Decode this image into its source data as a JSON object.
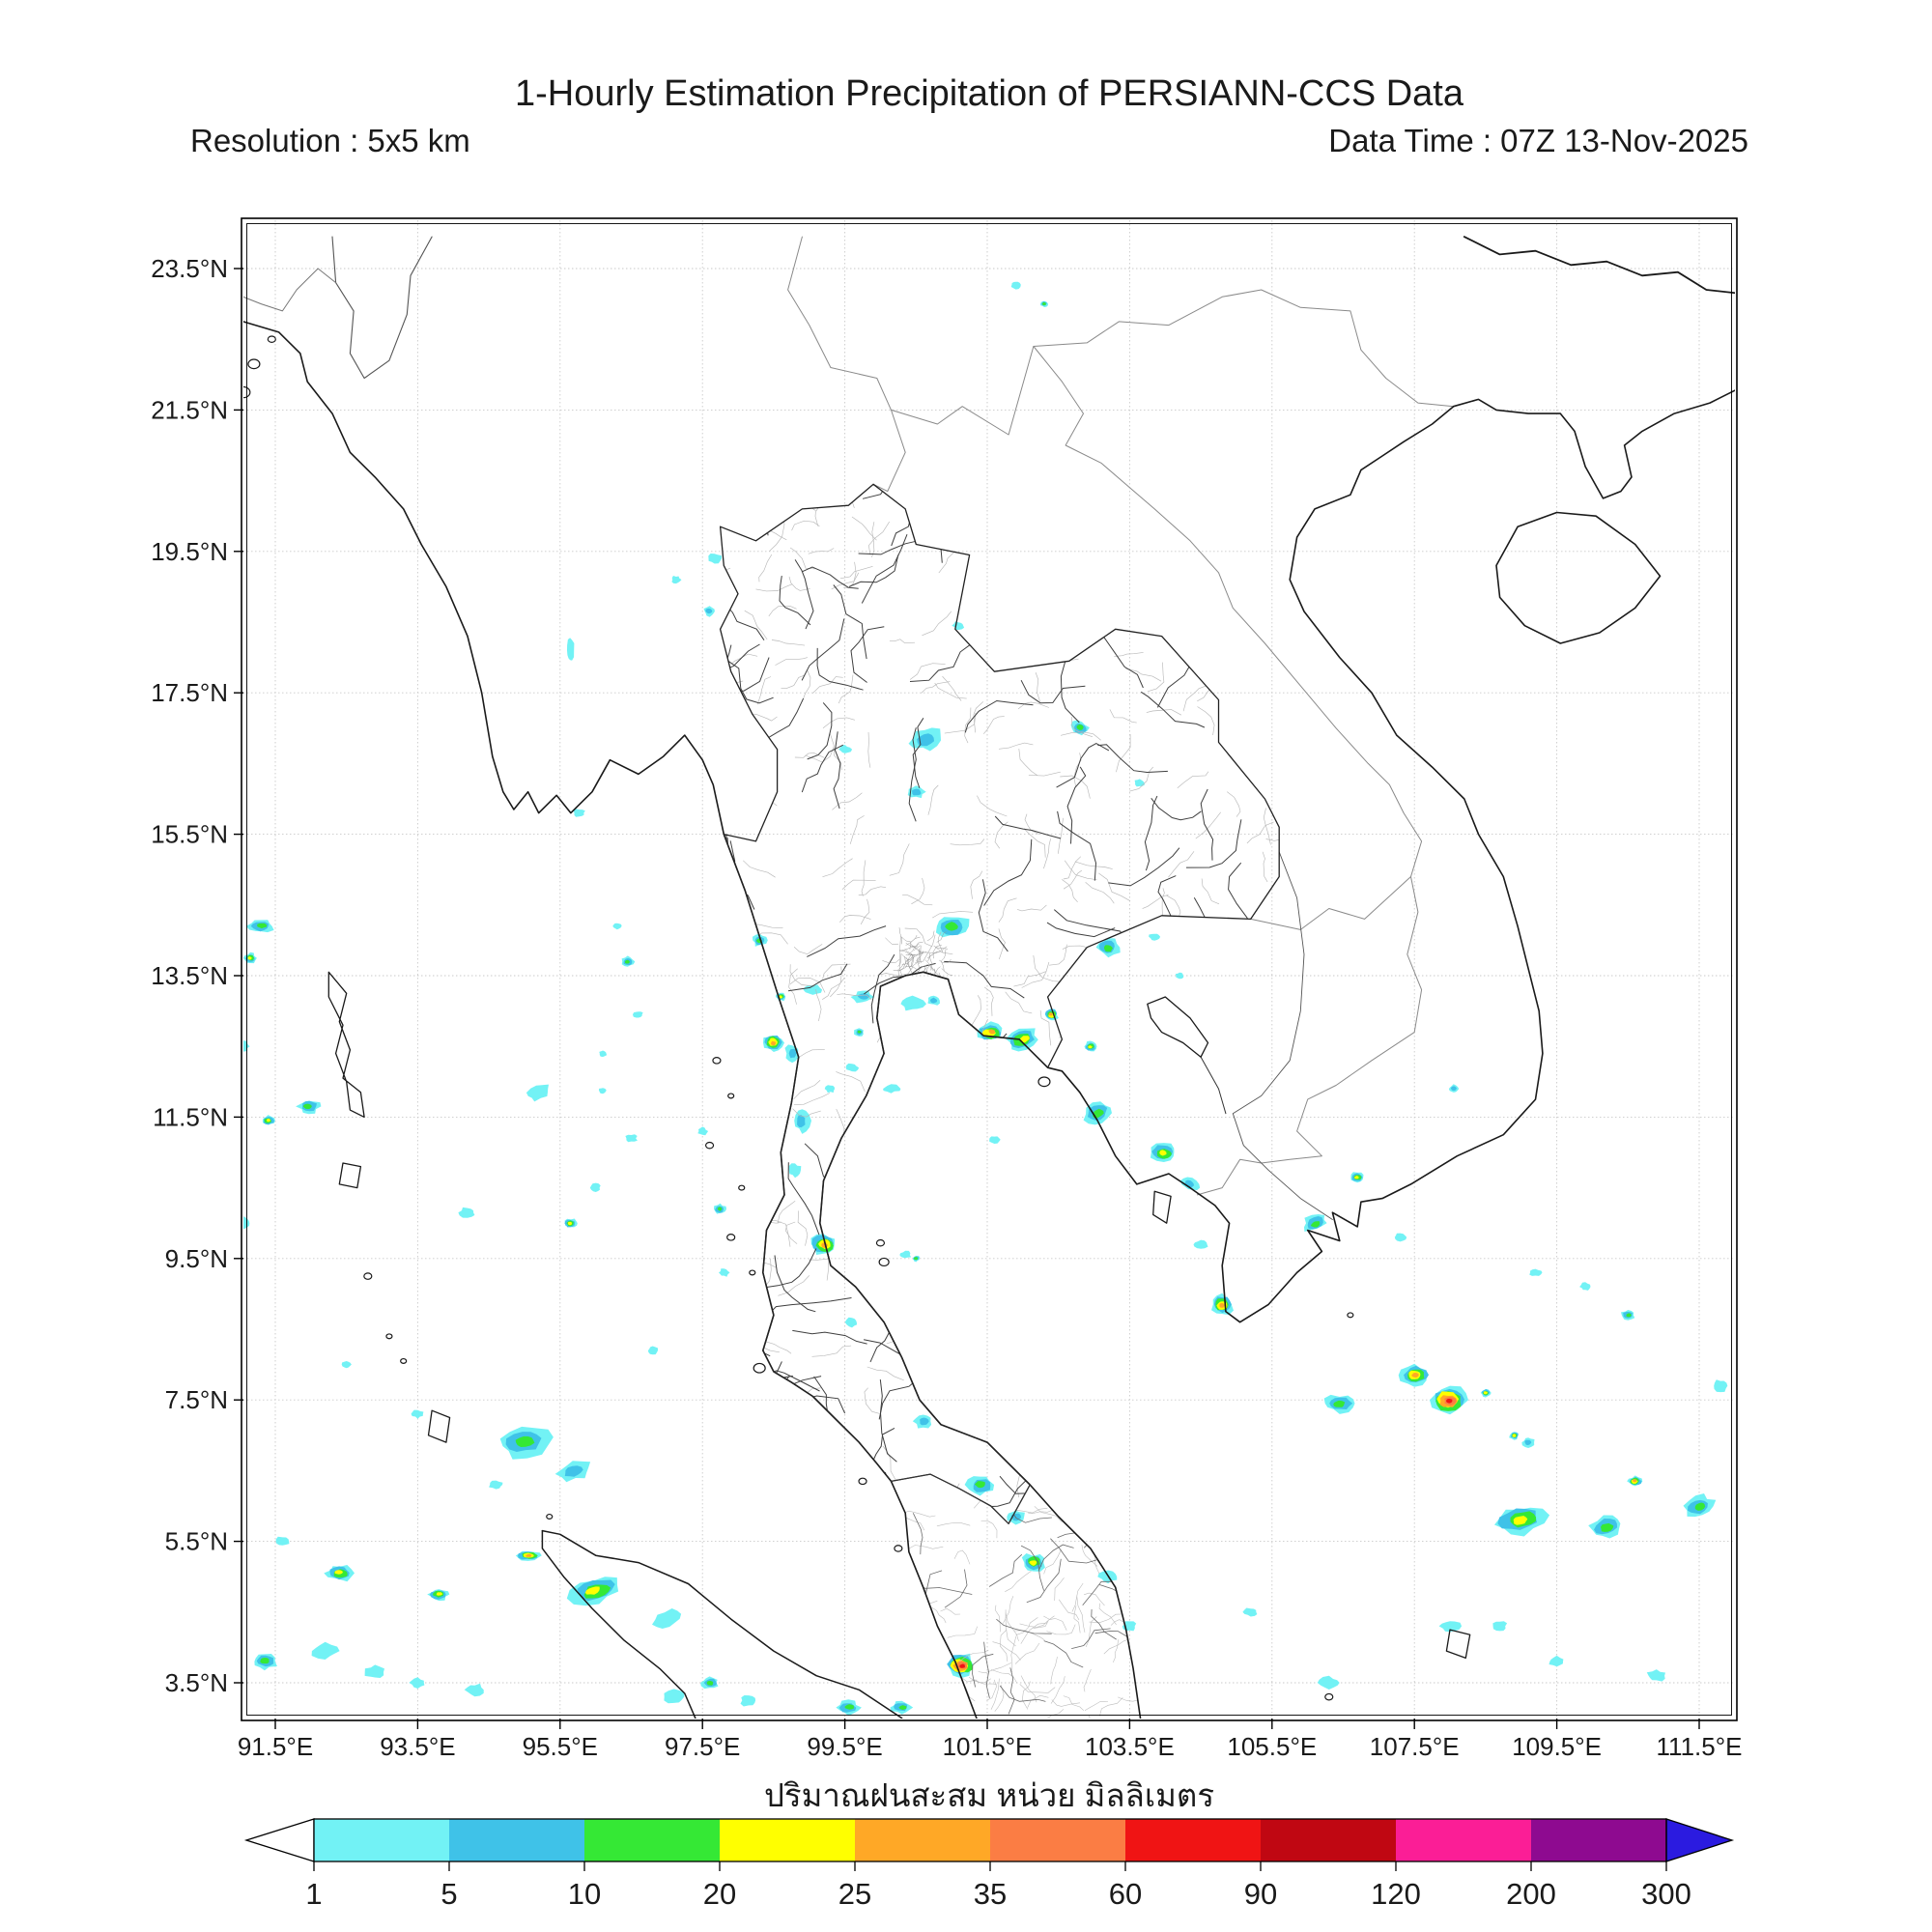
{
  "header": {
    "title": "1-Hourly Estimation Precipitation of PERSIANN-CCS Data",
    "resolution": "Resolution : 5x5 km",
    "data_time": "Data Time : 07Z 13-Nov-2025"
  },
  "caption_thai": "ปริมาณฝนสะสม หน่วย มิลลิเมตร",
  "map_axes": {
    "x_tick_labels": [
      "91.5°E",
      "93.5°E",
      "95.5°E",
      "97.5°E",
      "99.5°E",
      "101.5°E",
      "103.5°E",
      "105.5°E",
      "107.5°E",
      "109.5°E",
      "111.5°E"
    ],
    "x_tick_values": [
      91.5,
      93.5,
      95.5,
      97.5,
      99.5,
      101.5,
      103.5,
      105.5,
      107.5,
      109.5,
      111.5
    ],
    "y_tick_labels": [
      "23.5°N",
      "21.5°N",
      "19.5°N",
      "17.5°N",
      "15.5°N",
      "13.5°N",
      "11.5°N",
      "9.5°N",
      "7.5°N",
      "5.5°N",
      "3.5°N"
    ],
    "y_tick_values": [
      23.5,
      21.5,
      19.5,
      17.5,
      15.5,
      13.5,
      11.5,
      9.5,
      7.5,
      5.5,
      3.5
    ]
  },
  "colorbar": {
    "tick_labels": [
      "1",
      "5",
      "10",
      "20",
      "25",
      "35",
      "60",
      "90",
      "120",
      "200",
      "300"
    ],
    "tick_values": [
      1,
      5,
      10,
      20,
      25,
      35,
      60,
      90,
      120,
      200,
      300
    ],
    "segment_colors": [
      "#72F2F5",
      "#3FC2E8",
      "#35E835",
      "#FFFF00",
      "#FFA826",
      "#FB7D44",
      "#F01414",
      "#C00712",
      "#FB1E96",
      "#8E0A90"
    ],
    "under_arrow_color": "#FFFFFF",
    "over_arrow_color": "#2B1BE0",
    "border_color": "#000000"
  },
  "chart_data": {
    "type": "map-precipitation",
    "unit_label_thai": "มิลลิเมตร",
    "legend_values_mm": [
      1,
      5,
      10,
      20,
      25,
      35,
      60,
      90,
      120,
      200,
      300
    ],
    "level_colors": {
      "1": "#72F2F5",
      "2": "#3FC2E8",
      "3": "#35E835",
      "4": "#FFFF00",
      "5": "#FFA826",
      "6": "#FB7D44",
      "7": "#F01414",
      "8": "#C00712"
    },
    "blob_columns": [
      "lon",
      "lat",
      "intensity_level",
      "rx_px",
      "ry_px",
      "rot_deg"
    ],
    "blobs": [
      [
        97.67,
        19.4,
        1,
        7,
        5,
        0
      ],
      [
        97.13,
        19.1,
        1,
        5,
        4,
        0
      ],
      [
        97.6,
        18.65,
        2,
        6,
        5,
        0
      ],
      [
        101.1,
        18.45,
        1,
        6,
        4,
        0
      ],
      [
        100.65,
        16.85,
        2,
        16,
        11,
        -15
      ],
      [
        99.5,
        16.7,
        1,
        6,
        4,
        0
      ],
      [
        100.5,
        16.1,
        2,
        9,
        6,
        0
      ],
      [
        101.0,
        14.2,
        3,
        17,
        12,
        0
      ],
      [
        102.8,
        17.0,
        3,
        9,
        7,
        20
      ],
      [
        103.64,
        16.23,
        1,
        5,
        4,
        0
      ],
      [
        101.9,
        23.27,
        1,
        5,
        4,
        0
      ],
      [
        102.3,
        23.0,
        3,
        4,
        3,
        0
      ],
      [
        95.64,
        18.1,
        1,
        4,
        12,
        0
      ],
      [
        95.77,
        15.8,
        1,
        6,
        4,
        0
      ],
      [
        96.3,
        14.2,
        1,
        4,
        3,
        0
      ],
      [
        96.45,
        13.7,
        3,
        6,
        5,
        0
      ],
      [
        96.6,
        12.95,
        1,
        5,
        4,
        0
      ],
      [
        96.1,
        12.4,
        1,
        4,
        3,
        0
      ],
      [
        98.5,
        12.55,
        5,
        10,
        9,
        0
      ],
      [
        98.76,
        12.4,
        2,
        7,
        9,
        0
      ],
      [
        98.9,
        11.45,
        2,
        8,
        12,
        0
      ],
      [
        98.8,
        10.75,
        1,
        6,
        7,
        0
      ],
      [
        96.0,
        10.5,
        1,
        5,
        4,
        0
      ],
      [
        98.3,
        14.0,
        3,
        7,
        6,
        0
      ],
      [
        98.6,
        13.2,
        4,
        5,
        4,
        0
      ],
      [
        99.05,
        13.3,
        1,
        8,
        5,
        0
      ],
      [
        99.75,
        13.2,
        2,
        10,
        6,
        0
      ],
      [
        99.7,
        12.7,
        3,
        5,
        4,
        0
      ],
      [
        99.6,
        12.2,
        1,
        6,
        4,
        0
      ],
      [
        100.45,
        13.1,
        1,
        12,
        7,
        0
      ],
      [
        100.75,
        13.15,
        2,
        6,
        5,
        0
      ],
      [
        101.55,
        12.7,
        5,
        14,
        9,
        0
      ],
      [
        100.15,
        11.9,
        1,
        9,
        4,
        0
      ],
      [
        99.3,
        11.9,
        1,
        5,
        4,
        0
      ],
      [
        102.0,
        12.6,
        4,
        16,
        11,
        -20
      ],
      [
        102.4,
        12.95,
        5,
        7,
        6,
        0
      ],
      [
        102.95,
        12.5,
        4,
        6,
        5,
        0
      ],
      [
        103.05,
        11.55,
        3,
        15,
        11,
        -25
      ],
      [
        103.98,
        11.0,
        4,
        13,
        9,
        0
      ],
      [
        104.35,
        10.55,
        2,
        9,
        6,
        20
      ],
      [
        103.2,
        13.9,
        3,
        12,
        9,
        0
      ],
      [
        103.85,
        14.05,
        1,
        6,
        4,
        0
      ],
      [
        104.2,
        13.5,
        1,
        4,
        3,
        0
      ],
      [
        101.6,
        11.18,
        1,
        6,
        4,
        0
      ],
      [
        99.2,
        9.7,
        5,
        13,
        11,
        0
      ],
      [
        99.6,
        8.6,
        1,
        6,
        5,
        0
      ],
      [
        100.35,
        9.55,
        1,
        6,
        4,
        0
      ],
      [
        100.5,
        9.5,
        3,
        4,
        3,
        0
      ],
      [
        100.6,
        7.2,
        2,
        9,
        7,
        0
      ],
      [
        101.4,
        6.3,
        3,
        13,
        10,
        0
      ],
      [
        101.9,
        5.85,
        2,
        9,
        7,
        0
      ],
      [
        101.13,
        3.75,
        7,
        15,
        11,
        0
      ],
      [
        102.15,
        5.2,
        4,
        12,
        9,
        0
      ],
      [
        103.2,
        5.0,
        1,
        9,
        6,
        0
      ],
      [
        103.5,
        4.3,
        1,
        7,
        5,
        0
      ],
      [
        91.3,
        14.2,
        3,
        13,
        7,
        0
      ],
      [
        91.15,
        13.75,
        4,
        6,
        5,
        0
      ],
      [
        91.05,
        12.5,
        1,
        6,
        5,
        0
      ],
      [
        91.97,
        11.65,
        3,
        11,
        7,
        0
      ],
      [
        91.4,
        11.45,
        4,
        7,
        5,
        0
      ],
      [
        91.05,
        10.0,
        1,
        8,
        6,
        0
      ],
      [
        95.2,
        11.85,
        1,
        12,
        7,
        -20
      ],
      [
        94.2,
        10.15,
        1,
        8,
        5,
        0
      ],
      [
        96.5,
        11.2,
        1,
        6,
        4,
        0
      ],
      [
        95.65,
        10.0,
        4,
        7,
        5,
        0
      ],
      [
        96.1,
        11.88,
        1,
        4,
        3,
        0
      ],
      [
        97.5,
        11.3,
        1,
        5,
        4,
        0
      ],
      [
        97.75,
        10.2,
        3,
        6,
        5,
        0
      ],
      [
        97.8,
        9.3,
        1,
        5,
        4,
        0
      ],
      [
        96.8,
        8.2,
        1,
        5,
        4,
        0
      ],
      [
        95.0,
        6.9,
        3,
        26,
        15,
        -10
      ],
      [
        95.7,
        6.5,
        2,
        17,
        10,
        -10
      ],
      [
        93.5,
        7.3,
        1,
        6,
        4,
        0
      ],
      [
        92.5,
        8.0,
        1,
        5,
        4,
        0
      ],
      [
        95.05,
        5.3,
        5,
        12,
        5,
        0
      ],
      [
        96.0,
        4.8,
        4,
        25,
        13,
        -15
      ],
      [
        97.0,
        4.4,
        1,
        14,
        8,
        -20
      ],
      [
        92.4,
        5.05,
        4,
        13,
        8,
        0
      ],
      [
        91.6,
        5.5,
        1,
        8,
        5,
        0
      ],
      [
        91.35,
        3.8,
        3,
        12,
        8,
        0
      ],
      [
        92.2,
        3.95,
        1,
        13,
        8,
        0
      ],
      [
        92.9,
        3.65,
        1,
        11,
        7,
        0
      ],
      [
        93.5,
        3.5,
        1,
        8,
        5,
        0
      ],
      [
        93.8,
        4.75,
        4,
        10,
        6,
        0
      ],
      [
        94.6,
        6.3,
        1,
        7,
        4,
        0
      ],
      [
        94.3,
        3.4,
        1,
        9,
        6,
        0
      ],
      [
        97.1,
        3.3,
        1,
        11,
        7,
        0
      ],
      [
        97.6,
        3.5,
        3,
        9,
        6,
        0
      ],
      [
        98.15,
        3.25,
        1,
        9,
        6,
        0
      ],
      [
        99.55,
        3.15,
        3,
        12,
        7,
        0
      ],
      [
        100.3,
        3.15,
        3,
        10,
        6,
        0
      ],
      [
        106.1,
        10.0,
        3,
        13,
        8,
        -20
      ],
      [
        106.7,
        10.65,
        4,
        7,
        5,
        0
      ],
      [
        104.8,
        8.85,
        5,
        11,
        10,
        0
      ],
      [
        104.5,
        9.7,
        1,
        7,
        4,
        0
      ],
      [
        107.3,
        9.8,
        1,
        6,
        4,
        0
      ],
      [
        108.05,
        11.9,
        2,
        5,
        4,
        0
      ],
      [
        106.45,
        7.45,
        3,
        16,
        9,
        0
      ],
      [
        107.5,
        7.85,
        5,
        14,
        10,
        0
      ],
      [
        108.0,
        7.5,
        7,
        18,
        13,
        0
      ],
      [
        108.5,
        7.6,
        4,
        5,
        4,
        0
      ],
      [
        108.9,
        7.0,
        4,
        5,
        4,
        0
      ],
      [
        109.1,
        6.9,
        2,
        6,
        5,
        0
      ],
      [
        110.5,
        8.7,
        3,
        7,
        5,
        0
      ],
      [
        109.2,
        9.3,
        1,
        7,
        4,
        0
      ],
      [
        109.9,
        9.1,
        1,
        5,
        4,
        0
      ],
      [
        109.0,
        5.8,
        4,
        25,
        14,
        -10
      ],
      [
        110.2,
        5.7,
        3,
        17,
        11,
        -15
      ],
      [
        110.6,
        6.35,
        5,
        7,
        5,
        0
      ],
      [
        111.5,
        6.0,
        3,
        15,
        10,
        -20
      ],
      [
        111.8,
        7.7,
        1,
        7,
        6,
        0
      ],
      [
        108.0,
        4.3,
        1,
        10,
        6,
        0
      ],
      [
        108.7,
        4.3,
        1,
        7,
        5,
        0
      ],
      [
        109.5,
        3.8,
        1,
        8,
        5,
        0
      ],
      [
        110.9,
        3.6,
        1,
        10,
        6,
        0
      ],
      [
        106.3,
        3.5,
        1,
        11,
        6,
        0
      ],
      [
        105.2,
        4.5,
        1,
        7,
        4,
        0
      ]
    ]
  }
}
